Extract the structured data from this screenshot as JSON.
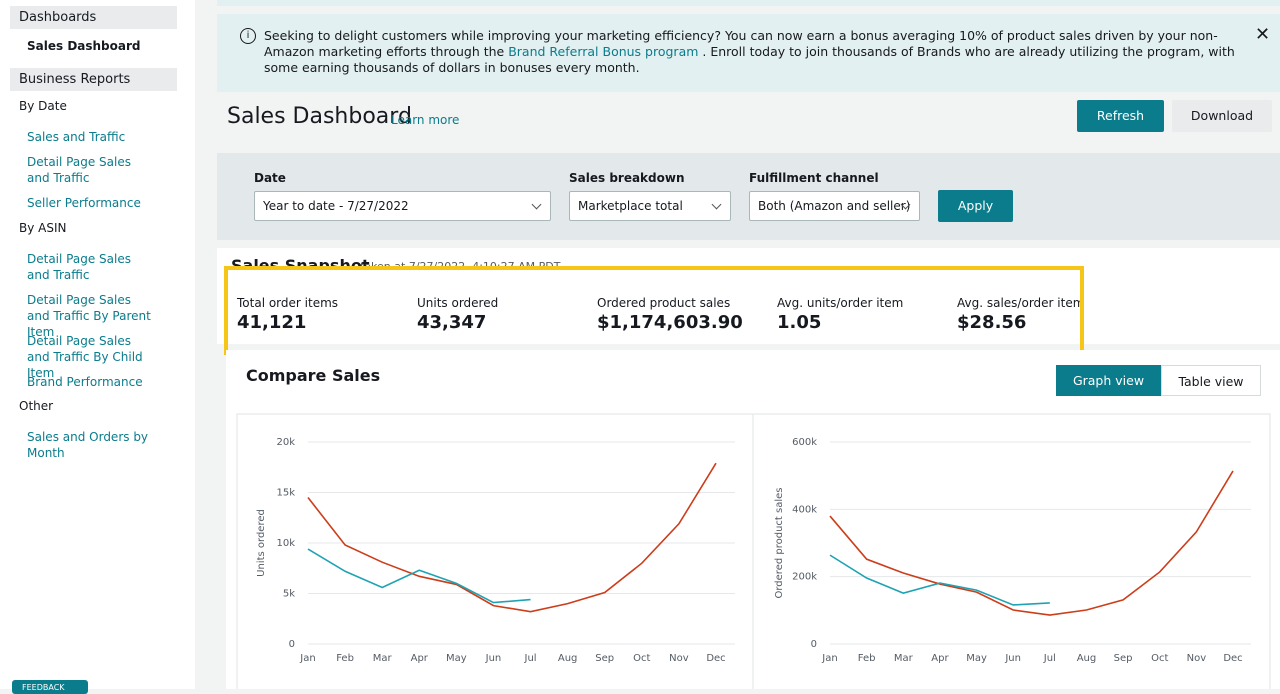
{
  "sidebar": {
    "items": [
      "Dashboards",
      "Sales Dashboard",
      "Business Reports",
      "By Date",
      "Sales and Traffic",
      "Detail Page Sales and Traffic",
      "Seller Performance",
      "By ASIN",
      "Detail Page Sales and Traffic",
      "Detail Page Sales and Traffic By Parent Item",
      "Detail Page Sales and Traffic By Child Item",
      "Brand Performance",
      "Other",
      "Sales and Orders by Month"
    ],
    "feedback": "FEEDBACK"
  },
  "banner": {
    "before": "Seeking to delight customers while improving your marketing efficiency? You can now earn a bonus averaging 10% of product sales driven by your non-Amazon marketing efforts through the",
    "link": "Brand Referral Bonus program",
    "after": ". Enroll today to join thousands of Brands who are already utilizing the program, with some earning thousands of dollars in bonuses every month."
  },
  "header": {
    "title": "Sales Dashboard",
    "learn_more": "Learn more",
    "refresh": "Refresh",
    "download": "Download"
  },
  "filters": {
    "date_label": "Date",
    "date_value": "Year to date - 7/27/2022",
    "breakdown_label": "Sales breakdown",
    "breakdown_value": "Marketplace total",
    "channel_label": "Fulfillment channel",
    "channel_value": "Both (Amazon and seller)",
    "apply": "Apply"
  },
  "snapshot": {
    "title": "Sales Snapshot",
    "subtitle": "taken at 7/27/2022, 4:10:27 AM PDT",
    "metrics": [
      {
        "label": "Total order items",
        "value": "41,121"
      },
      {
        "label": "Units ordered",
        "value": "43,347"
      },
      {
        "label": "Ordered product sales",
        "value": "$1,174,603.90"
      },
      {
        "label": "Avg. units/order item",
        "value": "1.05"
      },
      {
        "label": "Avg. sales/order item",
        "value": "$28.56"
      }
    ]
  },
  "compare": {
    "title": "Compare Sales",
    "graph_view": "Graph view",
    "table_view": "Table view"
  },
  "chart_data": [
    {
      "type": "line",
      "ylabel": "Units ordered",
      "categories": [
        "Jan",
        "Feb",
        "Mar",
        "Apr",
        "May",
        "Jun",
        "Jul",
        "Aug",
        "Sep",
        "Oct",
        "Nov",
        "Dec"
      ],
      "ylim": [
        0,
        20000
      ],
      "yticks": [
        0,
        {
          "value": 5000,
          "label": "5k"
        },
        {
          "value": 10000,
          "label": "10k"
        },
        {
          "value": 15000,
          "label": "15k"
        },
        {
          "value": 20000,
          "label": "20k"
        }
      ],
      "grid": true,
      "series": [
        {
          "color": "#cc3d1a",
          "values": [
            14500,
            9800,
            8100,
            6700,
            5900,
            3800,
            3200,
            4000,
            5100,
            8000,
            11900,
            17900
          ]
        },
        {
          "color": "#1fa3b3",
          "values": [
            9400,
            7200,
            5600,
            7300,
            6000,
            4100,
            4400,
            null,
            null,
            null,
            null,
            null
          ]
        }
      ]
    },
    {
      "type": "line",
      "ylabel": "Ordered product sales",
      "categories": [
        "Jan",
        "Feb",
        "Mar",
        "Apr",
        "May",
        "Jun",
        "Jul",
        "Aug",
        "Sep",
        "Oct",
        "Nov",
        "Dec"
      ],
      "ylim": [
        0,
        600000
      ],
      "yticks": [
        0,
        {
          "value": 200000,
          "label": "200k"
        },
        {
          "value": 400000,
          "label": "400k"
        },
        {
          "value": 600000,
          "label": "600k"
        }
      ],
      "grid": true,
      "series": [
        {
          "color": "#cc3d1a",
          "values": [
            380000,
            252000,
            211000,
            178000,
            154000,
            101000,
            86000,
            101000,
            131000,
            214000,
            333000,
            514000
          ]
        },
        {
          "color": "#1fa3b3",
          "values": [
            264000,
            196000,
            151000,
            181000,
            160000,
            116000,
            122000,
            null,
            null,
            null,
            null,
            null
          ]
        }
      ]
    }
  ]
}
